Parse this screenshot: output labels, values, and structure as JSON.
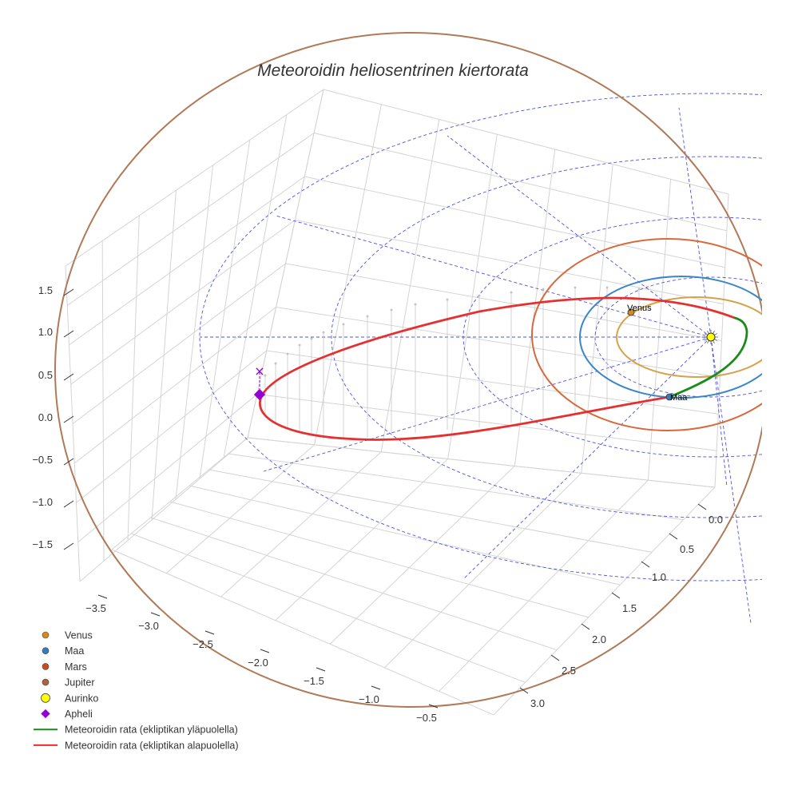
{
  "chart_data": {
    "type": "scatter3d",
    "title": "Meteoroidin heliosentrinen kiertorata",
    "axes": {
      "x": {
        "label": "",
        "range": [
          -3.7,
          -0.3
        ],
        "ticks": [
          "−3.5",
          "−3.0",
          "−2.5",
          "−2.0",
          "−1.5",
          "−1.0",
          "−0.5"
        ]
      },
      "y": {
        "label": "",
        "range": [
          -0.1,
          3.2
        ],
        "ticks": [
          "0.0",
          "0.5",
          "1.0",
          "1.5",
          "2.0",
          "2.5",
          "3.0"
        ]
      },
      "z": {
        "label": "",
        "range": [
          -1.9,
          1.7
        ],
        "ticks": [
          "1.5",
          "1.0",
          "0.5",
          "0.0",
          "−0.5",
          "−1.0",
          "−1.5"
        ]
      }
    },
    "planet_orbits": [
      {
        "name": "Venus",
        "color": "#d4a24a"
      },
      {
        "name": "Maa",
        "color": "#3a86c8"
      },
      {
        "name": "Mars",
        "color": "#d9683a"
      },
      {
        "name": "Jupiter",
        "color": "#b07a58"
      }
    ],
    "planet_labels": {
      "venus": "Venus",
      "earth": "Maa"
    },
    "meteoroid": {
      "aphelion_marker": "×",
      "segments": [
        {
          "name": "Meteoroidin rata (ekliptikan yläpuolella)",
          "color": "#1a8c1a"
        },
        {
          "name": "Meteoroidin rata (ekliptikan alapuolella)",
          "color": "#e63030"
        }
      ]
    },
    "legend": {
      "placement": "bottom-left",
      "items": [
        {
          "label": "Venus",
          "marker": "dot",
          "color": "#d28a1e"
        },
        {
          "label": "Maa",
          "marker": "dot",
          "color": "#2f7ec2"
        },
        {
          "label": "Mars",
          "marker": "dot",
          "color": "#c84a1e"
        },
        {
          "label": "Jupiter",
          "marker": "dot",
          "color": "#b0623a"
        },
        {
          "label": "Aurinko",
          "marker": "bigdot",
          "color": "#ffff00"
        },
        {
          "label": "Apheli",
          "marker": "diamond",
          "color": "#9400d3"
        },
        {
          "label": "Meteoroidin rata (ekliptikan yläpuolella)",
          "marker": "line",
          "color": "#1a8c1a"
        },
        {
          "label": "Meteoroidin rata (ekliptikan alapuolella)",
          "marker": "line",
          "color": "#e63030"
        }
      ]
    },
    "ecliptic_grid": {
      "style": "dashed",
      "color": "#4a4ae6"
    }
  }
}
